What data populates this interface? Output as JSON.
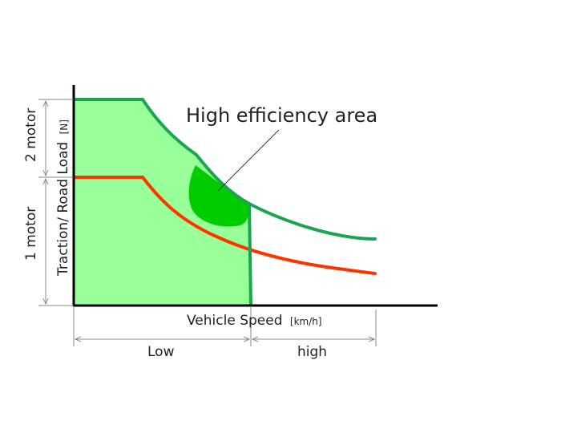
{
  "diagram": {
    "title_annotation": "High efficiency area",
    "y_axis_label": "Traction/ Road Load",
    "y_axis_unit": "[N]",
    "x_axis_label": "Vehicle Speed",
    "x_axis_unit": "[km/h]",
    "left_dimensions": {
      "upper": "2 motor",
      "lower": "1 motor"
    },
    "bottom_dimensions": {
      "left": "Low",
      "right": "high"
    },
    "colors": {
      "two_motor_curve": "#1aa551",
      "one_motor_curve": "#ff3300",
      "fill_region": "#99ff99",
      "efficiency_blob": "#00cc00",
      "axis": "#000000",
      "dimension_lines": "#888888"
    }
  }
}
